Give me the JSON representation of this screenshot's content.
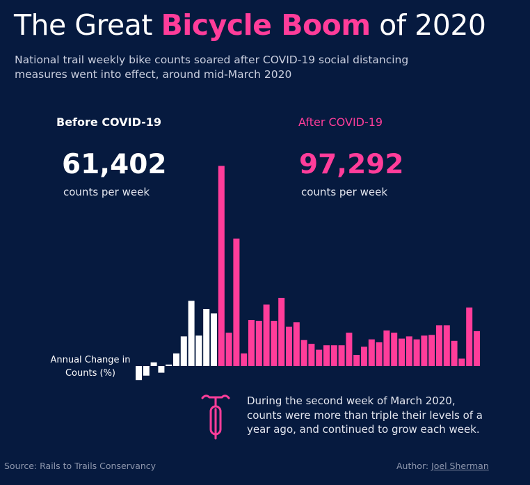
{
  "header": {
    "title_pre": "The Great ",
    "title_highlight": "Bicycle Boom",
    "title_post": " of 2020",
    "subtitle": "National trail weekly bike counts soared after COVID-19 social distancing measures went into effect, around mid-March 2020"
  },
  "kpis": {
    "before": {
      "label": "Before COVID-19",
      "value": "61,402",
      "unit": "counts per week"
    },
    "after": {
      "label": "After COVID-19",
      "value": "97,292",
      "unit": "counts per week"
    }
  },
  "annotation": "During the second week of March 2020, counts were more than triple their levels of a year ago, and continued to grow each week.",
  "footer": {
    "source": "Source: Rails to Trails Conservancy",
    "author_label": "Author: ",
    "author_name": "Joel Sherman"
  },
  "colors": {
    "before": "#ffffff",
    "after": "#ff3d9a",
    "background": "#061a3f"
  },
  "icons": {
    "annotation": "bicycle-icon"
  },
  "chart_data": {
    "type": "bar",
    "title": "",
    "xlabel": "",
    "ylabel": "Annual Change in Counts (%)",
    "grid": false,
    "legend": "none",
    "ylim": [
      -20,
      280
    ],
    "series": [
      {
        "period": "before",
        "values": [
          -19,
          -13,
          5,
          -9,
          2,
          17,
          40,
          88,
          41,
          77,
          71
        ]
      },
      {
        "period": "after",
        "values": [
          270,
          45,
          172,
          17,
          62,
          61,
          83,
          61,
          92,
          53,
          59,
          35,
          30,
          22,
          28,
          28,
          28,
          45,
          15,
          26,
          36,
          32,
          48,
          45,
          37,
          40,
          36,
          41,
          42,
          55,
          55,
          34,
          10,
          79,
          47
        ]
      }
    ]
  }
}
